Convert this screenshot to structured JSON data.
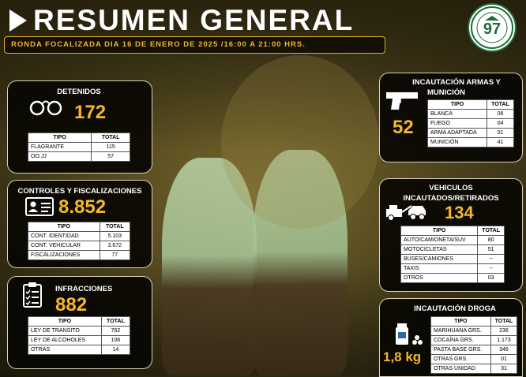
{
  "header": {
    "title": "RESUMEN GENERAL",
    "subtitle": "RONDA FOCALIZADA DIA 16 DE ENERO DE 2025 /16:00 A 21:00 HRS."
  },
  "colors": {
    "accent": "#f4b82a",
    "panel_bg": "#080602",
    "border": "#d9d2bd"
  },
  "detenidos": {
    "title": "DETENIDOS",
    "total": "172",
    "icon": "handcuffs-icon",
    "headers": [
      "TIPO",
      "TOTAL"
    ],
    "rows": [
      [
        "FLAGRANTE",
        "115"
      ],
      [
        "OO.JJ",
        "57"
      ]
    ]
  },
  "controles": {
    "title": "CONTROLES Y FISCALIZACIONES",
    "total": "8.852",
    "icon": "id-card-icon",
    "headers": [
      "TIPO",
      "TOTAL"
    ],
    "rows": [
      [
        "CONT. IDENTIDAD",
        "5.103"
      ],
      [
        "CONT. VEHICULAR",
        "3.672"
      ],
      [
        "FISCALIZACIONES",
        "77"
      ]
    ]
  },
  "infracciones": {
    "title": "INFRACCIONES",
    "total": "882",
    "icon": "checklist-icon",
    "headers": [
      "TIPO",
      "TOTAL"
    ],
    "rows": [
      [
        "LEY DE TRANSITO",
        "762"
      ],
      [
        "LEY DE ALCOHOLES",
        "106"
      ],
      [
        "OTRAS",
        "14"
      ]
    ]
  },
  "armas": {
    "title_line1": "INCAUTACIÓN ARMAS Y",
    "title_line2": "MUNICIÓN",
    "total": "52",
    "icon": "pistol-icon",
    "headers": [
      "TIPO",
      "TOTAL"
    ],
    "rows": [
      [
        "BLANCA",
        "06"
      ],
      [
        "FUEGO",
        "04"
      ],
      [
        "ARMA ADAPTADA",
        "01"
      ],
      [
        "MUNICIÓN",
        "41"
      ]
    ]
  },
  "vehiculos": {
    "title_line1": "VEHICULOS",
    "title_line2": "INCAUTADOS/RETIRADOS",
    "total": "134",
    "icon": "tow-truck-icon",
    "headers": [
      "TIPO",
      "TOTAL"
    ],
    "rows": [
      [
        "AUTO/CAMIONETA/SUV",
        "80"
      ],
      [
        "MOTOCICLETAS",
        "51"
      ],
      [
        "BUSES/CAMIONES",
        "--"
      ],
      [
        "TAXIS",
        "--"
      ],
      [
        "OTROS",
        "03"
      ]
    ]
  },
  "droga": {
    "title": "INCAUTACIÓN DROGA",
    "total": "1,8 kg",
    "icon": "drug-jar-icon",
    "headers": [
      "TIPO",
      "TOTAL"
    ],
    "rows": [
      [
        "MARIHUANA GRS.",
        "236"
      ],
      [
        "COCAÍNA GRS.",
        "1.173"
      ],
      [
        "PASTA BASE GRS.",
        "346"
      ],
      [
        "OTRAS GRS.",
        "01"
      ],
      [
        "OTRAS UNIDAD",
        "31"
      ]
    ]
  }
}
